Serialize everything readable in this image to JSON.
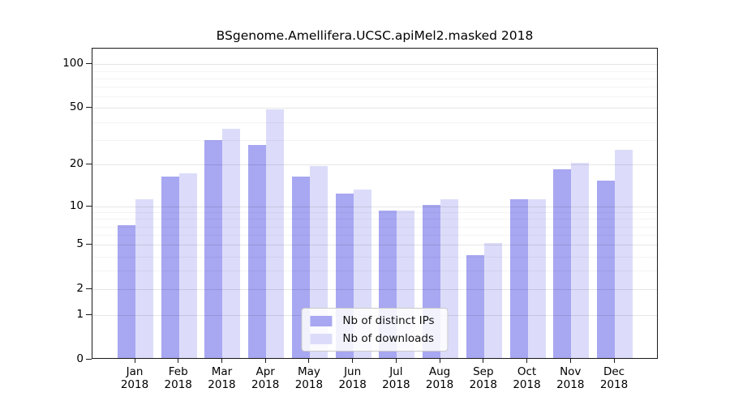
{
  "chart_data": {
    "type": "bar",
    "title": "BSgenome.Amellifera.UCSC.apiMel2.masked 2018",
    "categories": [
      "Jan",
      "Feb",
      "Mar",
      "Apr",
      "May",
      "Jun",
      "Jul",
      "Aug",
      "Sep",
      "Oct",
      "Nov",
      "Dec"
    ],
    "year_label": "2018",
    "series": [
      {
        "name": "Nb of distinct IPs",
        "color": "#a7a7f2",
        "values": [
          7,
          16,
          29,
          27,
          16,
          12,
          9,
          10,
          4,
          11,
          18,
          15
        ]
      },
      {
        "name": "Nb of downloads",
        "color": "#dcdcfa",
        "values": [
          11,
          17,
          35,
          48,
          19,
          13,
          9,
          11,
          5,
          11,
          20,
          25
        ]
      }
    ],
    "yscale": "log1p",
    "yticks": [
      0,
      1,
      2,
      5,
      10,
      20,
      50,
      100
    ],
    "yticks_minor": [
      3,
      4,
      6,
      7,
      8,
      9,
      30,
      40,
      60,
      70,
      80,
      90
    ],
    "ylim": [
      0,
      128
    ],
    "xlabel": "",
    "ylabel": "",
    "grid": "horizontal",
    "legend_position": "bottom-center"
  }
}
